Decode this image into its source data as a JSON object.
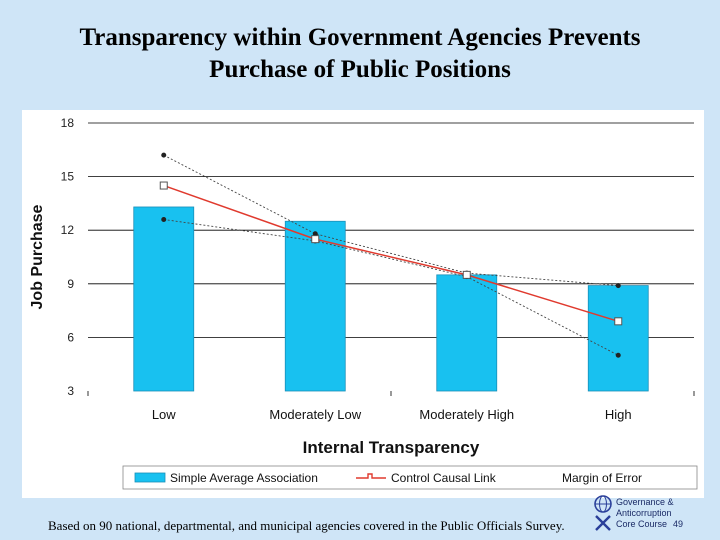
{
  "page": {
    "title_line1": "Transparency within Government Agencies Prevents",
    "title_line2": "Purchase of Public Positions",
    "footer": "Based on 90 national, departmental, and municipal agencies covered in the Public Officials Survey.",
    "course_line1": "Governance &",
    "course_line2": "Anticorruption",
    "course_line3": "Core Course",
    "page_number": "49",
    "logo_icon": "world-bank-logo-icon"
  },
  "chart_data": {
    "type": "bar",
    "title": "",
    "xlabel": "Internal Transparency",
    "ylabel": "Job Purchase",
    "ylim": [
      3,
      18
    ],
    "yticks": [
      "3",
      "6",
      "9",
      "12",
      "15",
      "18"
    ],
    "categories": [
      "Low",
      "Moderately Low",
      "Moderately High",
      "High"
    ],
    "grid": true,
    "series": [
      {
        "name": "Simple Average Association",
        "kind": "bar",
        "color": "#18c1f0",
        "values": [
          13.3,
          12.5,
          9.5,
          8.9
        ]
      },
      {
        "name": "Control Causal Link",
        "kind": "line",
        "color": "#e03a2e",
        "values": [
          14.5,
          11.5,
          9.5,
          6.9
        ]
      },
      {
        "name": "Margin of Error",
        "kind": "error-lines",
        "color": "#444444",
        "upper": [
          16.2,
          11.8,
          9.6,
          8.9
        ],
        "lower": [
          12.6,
          11.4,
          9.4,
          5.0
        ]
      }
    ],
    "legend_position": "bottom"
  }
}
